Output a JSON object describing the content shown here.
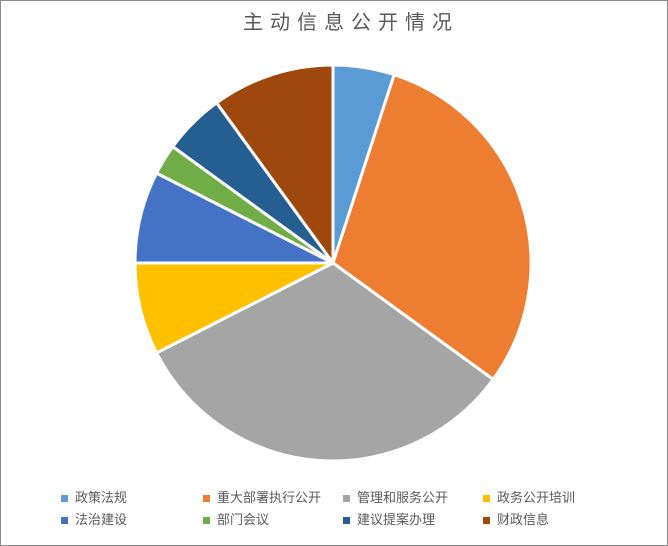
{
  "chart_data": {
    "type": "pie",
    "title": "主动信息公开情况",
    "categories": [
      "政策法规",
      "重大部署执行公开",
      "管理和服务公开",
      "政务公开培训",
      "法治建设",
      "部门会议",
      "建议提案办理",
      "财政信息"
    ],
    "values": [
      5,
      30,
      32.5,
      7.5,
      7.5,
      2.5,
      5,
      10
    ],
    "values_note": "percent share estimated from slice angles (18,108,117,27,27,9,18,36 degrees)",
    "colors": [
      "#5B9BD5",
      "#ED7D31",
      "#A5A5A5",
      "#FFC000",
      "#4472C4",
      "#70AD47",
      "#255E91",
      "#9E480E"
    ],
    "slice_border_color": "#FFFFFF",
    "start_angle_deg": 0,
    "direction": "clockwise",
    "legend_position": "bottom",
    "legend_rows": 2,
    "legend_columns": 4,
    "title_color": "#595959",
    "legend_text_color": "#595959",
    "background_color": "#FFFFFF",
    "frame_border_color": "#8C8C8C"
  }
}
